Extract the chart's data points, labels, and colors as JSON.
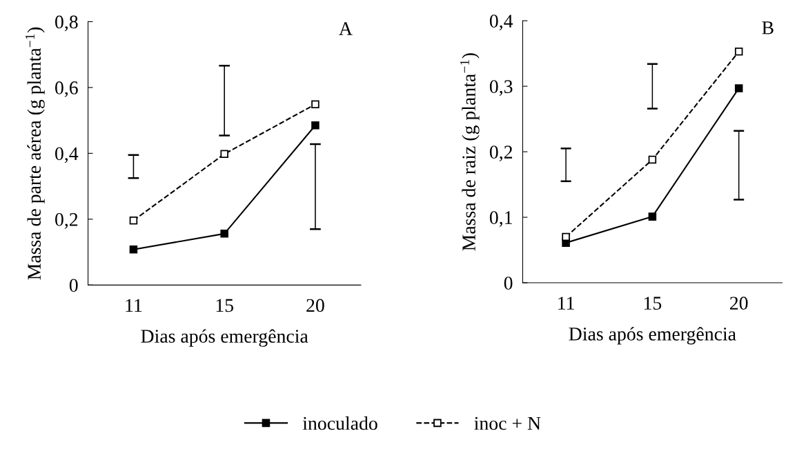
{
  "chart_data": [
    {
      "type": "line",
      "xlabel": "Dias após emergência",
      "ylabel": "Massa de parte aérea (g planta$^{−1}$)",
      "annotations": [
        "A"
      ],
      "categories": [
        "11",
        "15",
        "20"
      ],
      "series": [
        {
          "name": "inoculado",
          "color": "#000000",
          "values": [
            0.108,
            0.156,
            0.485
          ],
          "marker": "square",
          "line_style": "solid"
        },
        {
          "name": "inoc + N",
          "color": "#000000",
          "values": [
            0.196,
            0.398,
            0.549
          ],
          "marker": "square",
          "line_style": "dashed"
        },
        {
          "type": "bar",
          "color": "#000000",
          "base": [
            0.325,
            0.454,
            0.17
          ],
          "values": [
            0.07,
            0.212,
            0.258
          ]
        }
      ],
      "ylim": [
        0,
        0.8
      ],
      "yticks": [
        0,
        {
          "value": 0.2,
          "label": "0,2"
        },
        {
          "value": 0.4,
          "label": "0,4"
        },
        {
          "value": 0.6,
          "label": "0,6"
        },
        {
          "value": 0.8,
          "label": "0,8"
        }
      ],
      "grid": false,
      "legend": "bottom"
    },
    {
      "type": "line",
      "xlabel": "Dias após emergência",
      "ylabel": "Massa de raiz (g planta$^{−1}$)",
      "annotations": [
        "B"
      ],
      "categories": [
        "11",
        "15",
        "20"
      ],
      "series": [
        {
          "color": "#000000",
          "values": [
            0.061,
            0.101,
            0.297
          ],
          "marker": "square",
          "line_style": "solid"
        },
        {
          "color": "#000000",
          "values": [
            0.07,
            0.188,
            0.353
          ],
          "marker": "square",
          "line_style": "dashed"
        },
        {
          "type": "bar",
          "color": "#000000",
          "base": [
            0.155,
            0.266,
            0.127
          ],
          "values": [
            0.05,
            0.068,
            0.105
          ]
        }
      ],
      "ylim": [
        0,
        0.4
      ],
      "yticks": [
        0,
        {
          "value": 0.1,
          "label": "0,1"
        },
        {
          "value": 0.2,
          "label": "0,2"
        },
        {
          "value": 0.3,
          "label": "0,3"
        },
        {
          "value": 0.4,
          "label": "0,4"
        }
      ],
      "grid": false,
      "legend": false
    }
  ]
}
